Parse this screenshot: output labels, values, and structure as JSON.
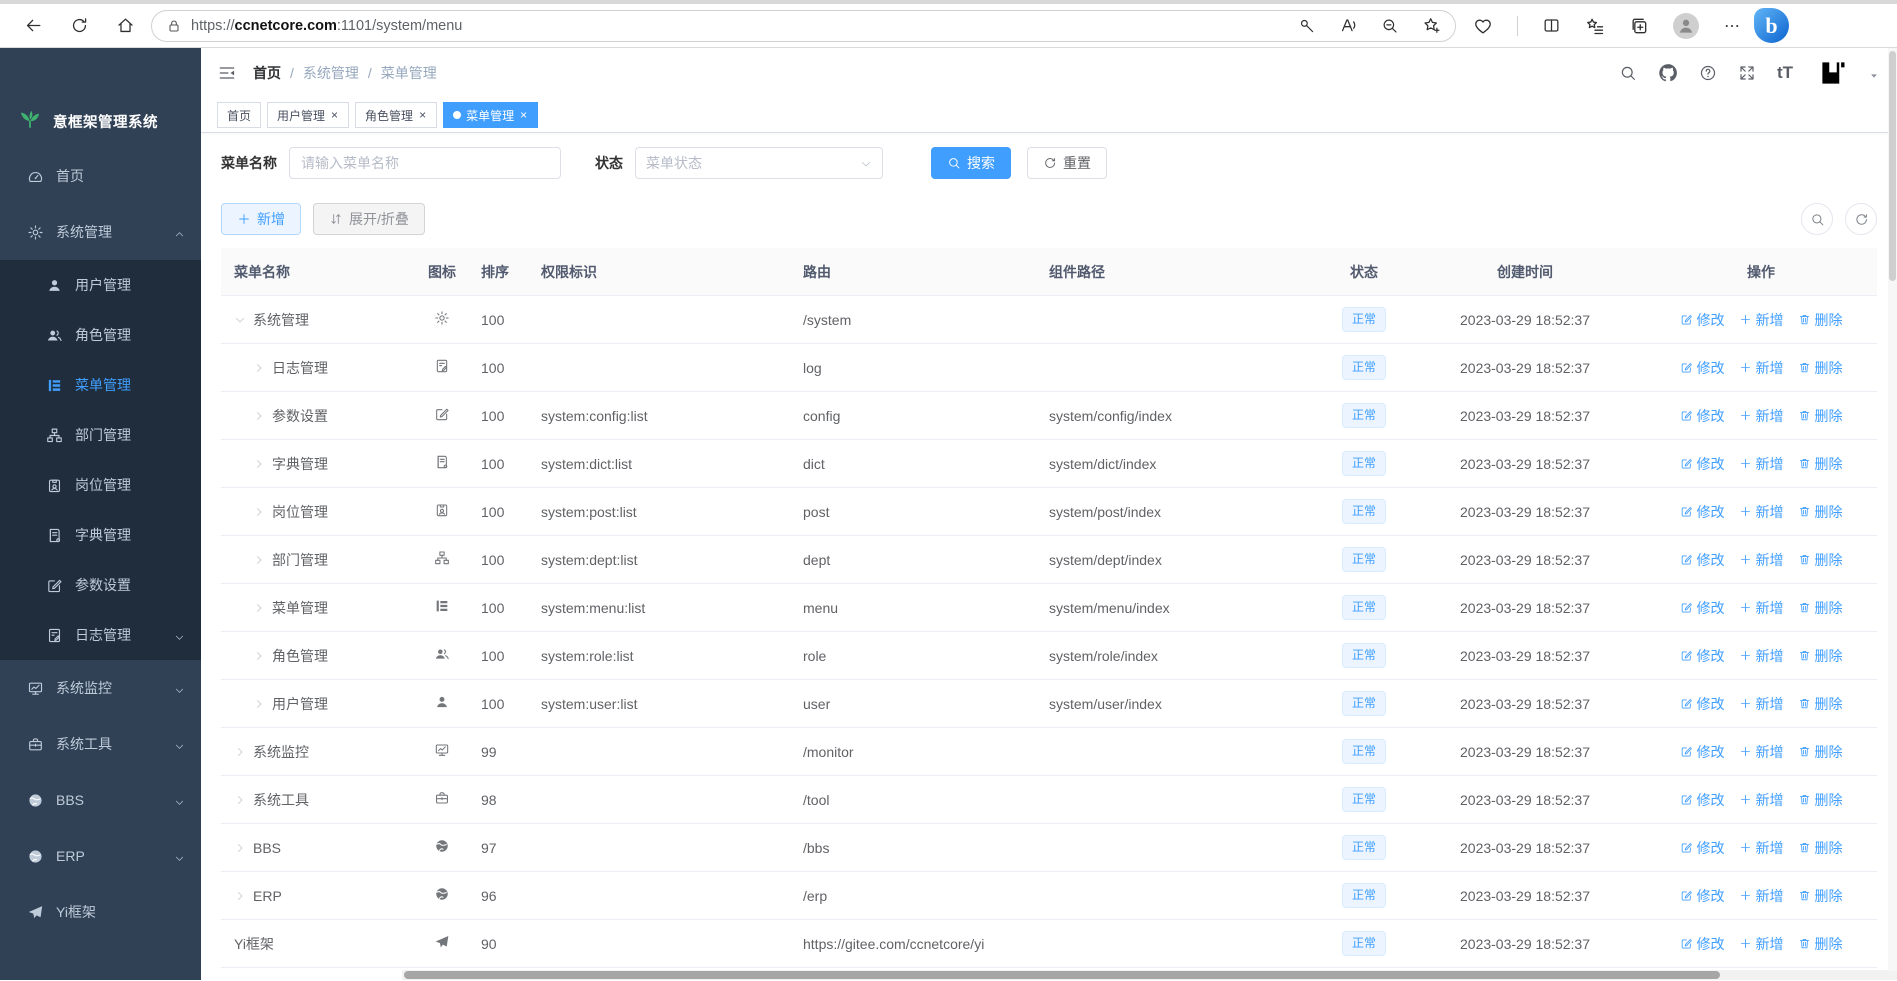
{
  "browser": {
    "url_scheme": "https://",
    "url_host": "ccnetcore.com",
    "url_path": ":1101/system/menu",
    "bing_glyph": "b"
  },
  "app_title": "意框架管理系统",
  "sidebar": {
    "items": [
      {
        "label": "首页",
        "icon": "dashboard-icon",
        "type": "top"
      },
      {
        "label": "系统管理",
        "icon": "gear-icon",
        "type": "top",
        "caret": "up"
      },
      {
        "label": "用户管理",
        "icon": "user-icon",
        "type": "sub"
      },
      {
        "label": "角色管理",
        "icon": "users-icon",
        "type": "sub"
      },
      {
        "label": "菜单管理",
        "icon": "menu-tree-icon",
        "type": "sub",
        "active": true
      },
      {
        "label": "部门管理",
        "icon": "org-tree-icon",
        "type": "sub"
      },
      {
        "label": "岗位管理",
        "icon": "post-badge-icon",
        "type": "sub"
      },
      {
        "label": "字典管理",
        "icon": "dictionary-icon",
        "type": "sub"
      },
      {
        "label": "参数设置",
        "icon": "edit-square-icon",
        "type": "sub"
      },
      {
        "label": "日志管理",
        "icon": "log-icon",
        "type": "sub",
        "caret": "down"
      },
      {
        "label": "系统监控",
        "icon": "monitor-icon",
        "type": "top",
        "caret": "down"
      },
      {
        "label": "系统工具",
        "icon": "toolbox-icon",
        "type": "top",
        "caret": "down"
      },
      {
        "label": "BBS",
        "icon": "globe-icon",
        "type": "top",
        "caret": "down"
      },
      {
        "label": "ERP",
        "icon": "globe-icon",
        "type": "top",
        "caret": "down"
      },
      {
        "label": "Yi框架",
        "icon": "paper-plane-icon",
        "type": "top"
      }
    ]
  },
  "navbar": {
    "breadcrumb": [
      "首页",
      "系统管理",
      "菜单管理"
    ],
    "breadcrumb_separator": "/",
    "fontsize_icon_text": "tT"
  },
  "tabs": [
    {
      "label": "首页",
      "closable": false,
      "active": false
    },
    {
      "label": "用户管理",
      "closable": true,
      "active": false
    },
    {
      "label": "角色管理",
      "closable": true,
      "active": false
    },
    {
      "label": "菜单管理",
      "closable": true,
      "active": true
    }
  ],
  "search": {
    "name_label": "菜单名称",
    "name_placeholder": "请输入菜单名称",
    "status_label": "状态",
    "status_placeholder": "菜单状态",
    "search_button": "搜索",
    "reset_button": "重置"
  },
  "toolbar": {
    "add_button": "新增",
    "expand_button": "展开/折叠"
  },
  "table": {
    "headers": [
      "菜单名称",
      "图标",
      "排序",
      "权限标识",
      "路由",
      "组件路径",
      "状态",
      "创建时间",
      "操作"
    ],
    "actions": {
      "edit": "修改",
      "add": "新增",
      "delete": "删除"
    },
    "rows": [
      {
        "name": "系统管理",
        "icon": "gear-icon",
        "indent": 0,
        "arrow": "expanded",
        "order": "100",
        "perm": "",
        "route": "/system",
        "component": "",
        "status": "正常",
        "created": "2023-03-29 18:52:37"
      },
      {
        "name": "日志管理",
        "icon": "log-icon",
        "indent": 1,
        "arrow": "collapsed",
        "order": "100",
        "perm": "",
        "route": "log",
        "component": "",
        "status": "正常",
        "created": "2023-03-29 18:52:37"
      },
      {
        "name": "参数设置",
        "icon": "edit-square-icon",
        "indent": 1,
        "arrow": "collapsed",
        "order": "100",
        "perm": "system:config:list",
        "route": "config",
        "component": "system/config/index",
        "status": "正常",
        "created": "2023-03-29 18:52:37"
      },
      {
        "name": "字典管理",
        "icon": "dictionary-icon",
        "indent": 1,
        "arrow": "collapsed",
        "order": "100",
        "perm": "system:dict:list",
        "route": "dict",
        "component": "system/dict/index",
        "status": "正常",
        "created": "2023-03-29 18:52:37"
      },
      {
        "name": "岗位管理",
        "icon": "post-badge-icon",
        "indent": 1,
        "arrow": "collapsed",
        "order": "100",
        "perm": "system:post:list",
        "route": "post",
        "component": "system/post/index",
        "status": "正常",
        "created": "2023-03-29 18:52:37"
      },
      {
        "name": "部门管理",
        "icon": "org-tree-icon",
        "indent": 1,
        "arrow": "collapsed",
        "order": "100",
        "perm": "system:dept:list",
        "route": "dept",
        "component": "system/dept/index",
        "status": "正常",
        "created": "2023-03-29 18:52:37"
      },
      {
        "name": "菜单管理",
        "icon": "menu-tree-icon",
        "indent": 1,
        "arrow": "collapsed",
        "order": "100",
        "perm": "system:menu:list",
        "route": "menu",
        "component": "system/menu/index",
        "status": "正常",
        "created": "2023-03-29 18:52:37"
      },
      {
        "name": "角色管理",
        "icon": "users-icon",
        "indent": 1,
        "arrow": "collapsed",
        "order": "100",
        "perm": "system:role:list",
        "route": "role",
        "component": "system/role/index",
        "status": "正常",
        "created": "2023-03-29 18:52:37"
      },
      {
        "name": "用户管理",
        "icon": "user-icon",
        "indent": 1,
        "arrow": "collapsed",
        "order": "100",
        "perm": "system:user:list",
        "route": "user",
        "component": "system/user/index",
        "status": "正常",
        "created": "2023-03-29 18:52:37"
      },
      {
        "name": "系统监控",
        "icon": "monitor-icon",
        "indent": 0,
        "arrow": "collapsed",
        "order": "99",
        "perm": "",
        "route": "/monitor",
        "component": "",
        "status": "正常",
        "created": "2023-03-29 18:52:37"
      },
      {
        "name": "系统工具",
        "icon": "toolbox-icon",
        "indent": 0,
        "arrow": "collapsed",
        "order": "98",
        "perm": "",
        "route": "/tool",
        "component": "",
        "status": "正常",
        "created": "2023-03-29 18:52:37"
      },
      {
        "name": "BBS",
        "icon": "globe-icon",
        "indent": 0,
        "arrow": "collapsed",
        "order": "97",
        "perm": "",
        "route": "/bbs",
        "component": "",
        "status": "正常",
        "created": "2023-03-29 18:52:37"
      },
      {
        "name": "ERP",
        "icon": "globe-icon",
        "indent": 0,
        "arrow": "collapsed",
        "order": "96",
        "perm": "",
        "route": "/erp",
        "component": "",
        "status": "正常",
        "created": "2023-03-29 18:52:37"
      },
      {
        "name": "Yi框架",
        "icon": "paper-plane-icon",
        "indent": 0,
        "arrow": "none",
        "order": "90",
        "perm": "",
        "route": "https://gitee.com/ccnetcore/yi",
        "component": "",
        "status": "正常",
        "created": "2023-03-29 18:52:37"
      }
    ]
  },
  "colors": {
    "accent": "#409eff",
    "sidebar_bg": "#304156",
    "submenu_bg": "#1f2d3d",
    "badge_bg": "#ecf5ff",
    "badge_border": "#d9ecff"
  }
}
